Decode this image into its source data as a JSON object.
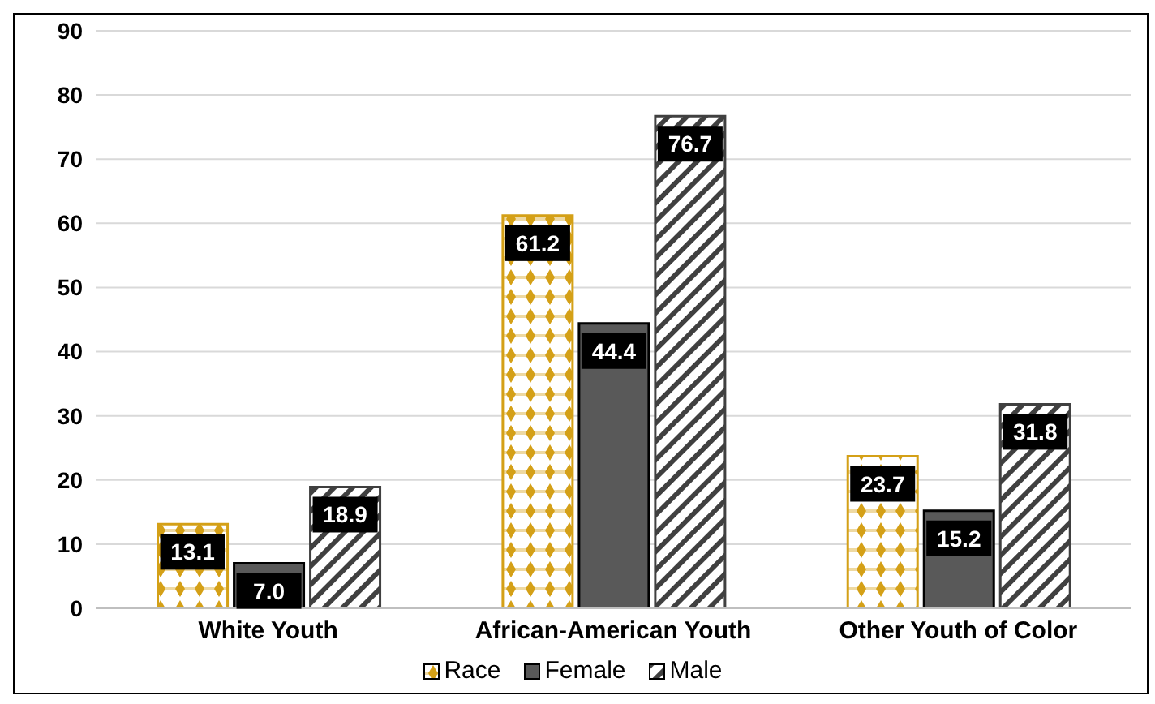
{
  "chart_data": {
    "type": "bar",
    "categories": [
      "White Youth",
      "African-American Youth",
      "Other Youth of Color"
    ],
    "series": [
      {
        "name": "Race",
        "color": "#d4a017",
        "values": [
          13.1,
          61.2,
          23.7
        ],
        "value_labels": [
          "13.1",
          "61.2",
          "23.7"
        ]
      },
      {
        "name": "Female",
        "color": "#595959",
        "values": [
          7.0,
          44.4,
          15.2
        ],
        "value_labels": [
          "7.0",
          "44.4",
          "15.2"
        ]
      },
      {
        "name": "Male",
        "color": "#404040",
        "values": [
          18.9,
          76.7,
          31.8
        ],
        "value_labels": [
          "18.9",
          "76.7",
          "31.8"
        ]
      }
    ],
    "ylim": [
      0,
      90
    ],
    "yticks": [
      0,
      10,
      20,
      30,
      40,
      50,
      60,
      70,
      80,
      90
    ],
    "grid": "y",
    "legend": "bottom"
  }
}
